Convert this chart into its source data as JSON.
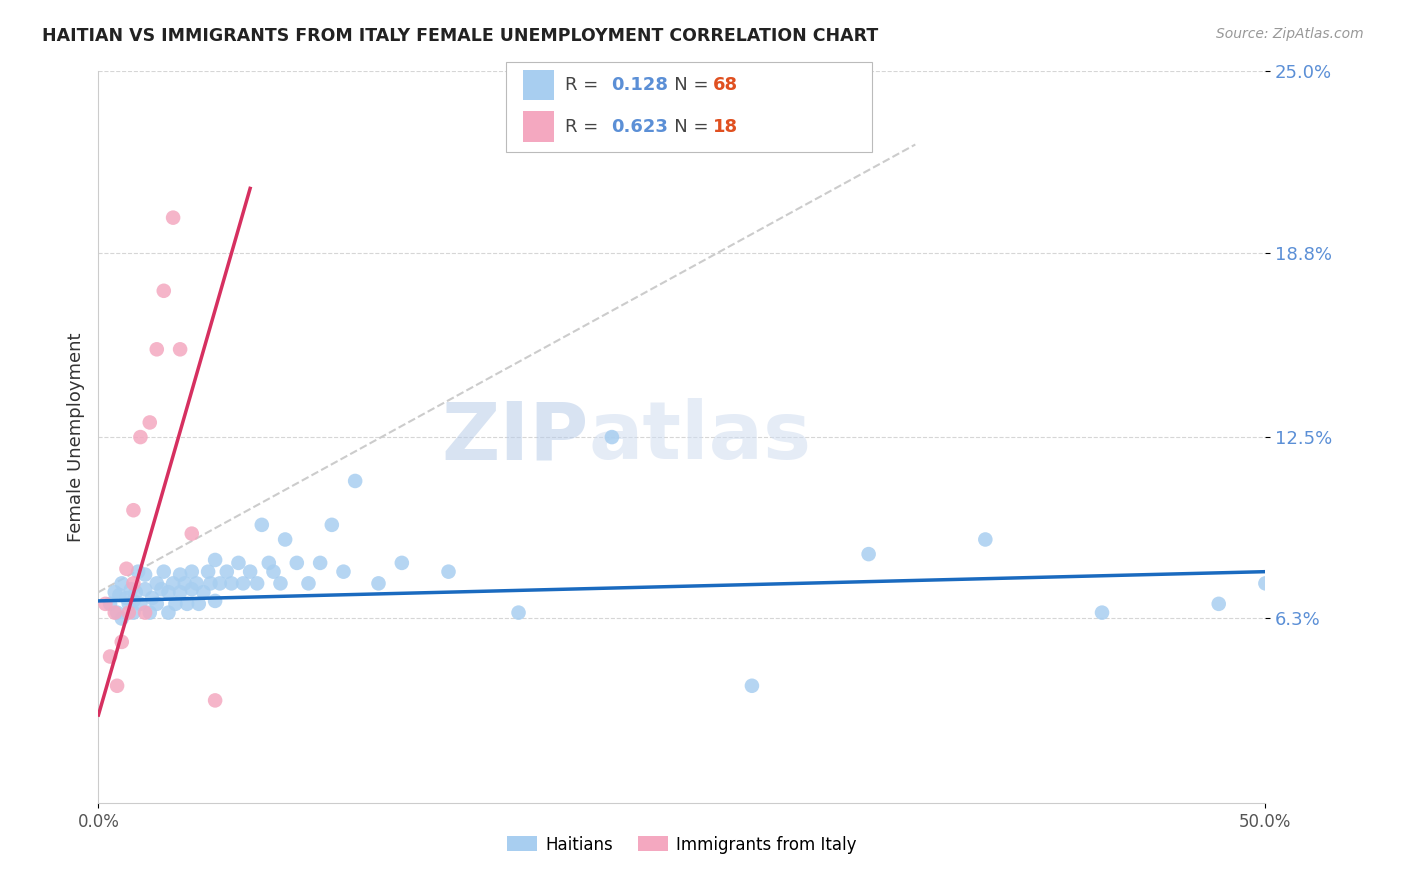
{
  "title": "HAITIAN VS IMMIGRANTS FROM ITALY FEMALE UNEMPLOYMENT CORRELATION CHART",
  "source": "Source: ZipAtlas.com",
  "ylabel": "Female Unemployment",
  "x_min": 0.0,
  "x_max": 0.5,
  "y_min": 0.0,
  "y_max": 0.25,
  "yticks": [
    0.063,
    0.125,
    0.188,
    0.25
  ],
  "ytick_labels": [
    "6.3%",
    "12.5%",
    "18.8%",
    "25.0%"
  ],
  "xtick_left_label": "0.0%",
  "xtick_right_label": "50.0%",
  "legend_blue_R": "0.128",
  "legend_blue_N": "68",
  "legend_pink_R": "0.623",
  "legend_pink_N": "18",
  "blue_color": "#a8cef0",
  "pink_color": "#f4a8c0",
  "blue_line_color": "#1a6abf",
  "pink_line_color": "#d63060",
  "trendline_dashed_color": "#cccccc",
  "watermark_zip": "ZIP",
  "watermark_atlas": "atlas",
  "blue_scatter_x": [
    0.005,
    0.007,
    0.008,
    0.009,
    0.01,
    0.01,
    0.012,
    0.013,
    0.014,
    0.015,
    0.015,
    0.016,
    0.017,
    0.018,
    0.02,
    0.02,
    0.022,
    0.023,
    0.025,
    0.025,
    0.027,
    0.028,
    0.03,
    0.03,
    0.032,
    0.033,
    0.035,
    0.035,
    0.037,
    0.038,
    0.04,
    0.04,
    0.042,
    0.043,
    0.045,
    0.047,
    0.048,
    0.05,
    0.05,
    0.052,
    0.055,
    0.057,
    0.06,
    0.062,
    0.065,
    0.068,
    0.07,
    0.073,
    0.075,
    0.078,
    0.08,
    0.085,
    0.09,
    0.095,
    0.1,
    0.105,
    0.11,
    0.12,
    0.13,
    0.15,
    0.18,
    0.22,
    0.28,
    0.33,
    0.38,
    0.43,
    0.48,
    0.5
  ],
  "blue_scatter_y": [
    0.068,
    0.072,
    0.065,
    0.071,
    0.075,
    0.063,
    0.07,
    0.068,
    0.073,
    0.069,
    0.065,
    0.072,
    0.079,
    0.068,
    0.073,
    0.078,
    0.065,
    0.07,
    0.075,
    0.068,
    0.073,
    0.079,
    0.065,
    0.072,
    0.075,
    0.068,
    0.078,
    0.072,
    0.075,
    0.068,
    0.073,
    0.079,
    0.075,
    0.068,
    0.072,
    0.079,
    0.075,
    0.083,
    0.069,
    0.075,
    0.079,
    0.075,
    0.082,
    0.075,
    0.079,
    0.075,
    0.095,
    0.082,
    0.079,
    0.075,
    0.09,
    0.082,
    0.075,
    0.082,
    0.095,
    0.079,
    0.11,
    0.075,
    0.082,
    0.079,
    0.065,
    0.125,
    0.04,
    0.085,
    0.09,
    0.065,
    0.068,
    0.075
  ],
  "pink_scatter_x": [
    0.003,
    0.005,
    0.007,
    0.008,
    0.01,
    0.012,
    0.013,
    0.015,
    0.015,
    0.018,
    0.02,
    0.022,
    0.025,
    0.028,
    0.032,
    0.035,
    0.04,
    0.05
  ],
  "pink_scatter_y": [
    0.068,
    0.05,
    0.065,
    0.04,
    0.055,
    0.08,
    0.065,
    0.075,
    0.1,
    0.125,
    0.065,
    0.13,
    0.155,
    0.175,
    0.2,
    0.155,
    0.092,
    0.035
  ],
  "blue_trend_x": [
    0.0,
    0.5
  ],
  "blue_trend_y": [
    0.069,
    0.079
  ],
  "pink_trend_x": [
    0.0,
    0.065
  ],
  "pink_trend_y": [
    0.03,
    0.21
  ],
  "dashed_trend_x": [
    0.0,
    0.35
  ],
  "dashed_trend_y": [
    0.072,
    0.225
  ]
}
